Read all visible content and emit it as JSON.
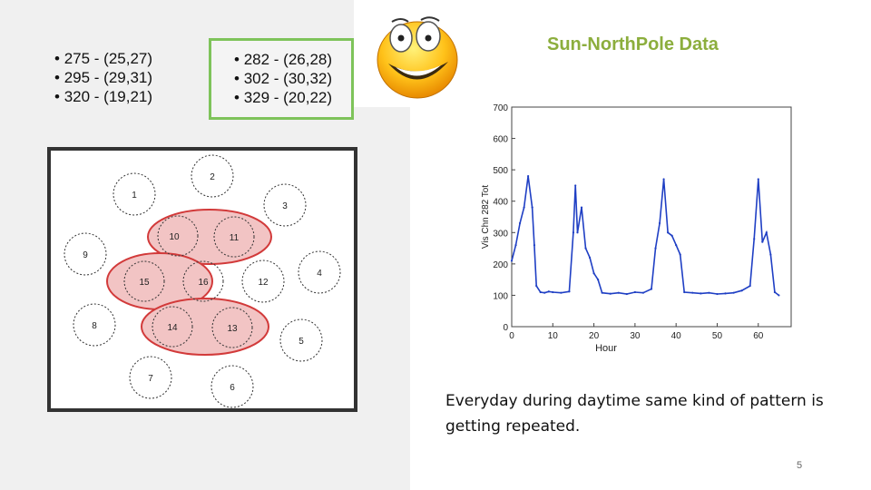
{
  "bullets_left": [
    "275 - (25,27)",
    "295 - (29,31)",
    "320 - (19,21)"
  ],
  "bullets_right": [
    "282 - (26,28)",
    "302 - (30,32)",
    "329 - (20,22)"
  ],
  "title": "Sun-NorthPole Data",
  "caption": "Everyday during daytime same kind of pattern is getting repeated.",
  "page_number": "5",
  "diagram_nodes": [
    "1",
    "2",
    "3",
    "4",
    "5",
    "6",
    "7",
    "8",
    "9",
    "10",
    "11",
    "12",
    "13",
    "14",
    "15",
    "16"
  ],
  "highlight_color": "#d23a3a",
  "chart_data": {
    "type": "line",
    "title": "",
    "xlabel": "Hour",
    "ylabel": "Vis Chn 282 Tot",
    "xlim": [
      0,
      68
    ],
    "ylim": [
      0,
      700
    ],
    "xticks": [
      "0",
      "10",
      "20",
      "30",
      "40",
      "50",
      "60"
    ],
    "yticks": [
      "0",
      "100",
      "200",
      "300",
      "400",
      "500",
      "600",
      "700"
    ],
    "series": [
      {
        "color": "#1f3fc4",
        "x": [
          0,
          1,
          2,
          3,
          4,
          5,
          5.5,
          6,
          7,
          8,
          9,
          10,
          12,
          14,
          15,
          15.5,
          16,
          17,
          18,
          19,
          20,
          21,
          22,
          24,
          26,
          28,
          30,
          32,
          34,
          35,
          36,
          37,
          38,
          39,
          40,
          41,
          42,
          44,
          46,
          48,
          50,
          52,
          54,
          56,
          58,
          59,
          60,
          61,
          62,
          63,
          64,
          65
        ],
        "y": [
          210,
          260,
          330,
          380,
          480,
          380,
          260,
          130,
          110,
          108,
          112,
          110,
          108,
          112,
          300,
          450,
          300,
          380,
          250,
          220,
          170,
          150,
          108,
          105,
          108,
          104,
          110,
          108,
          120,
          250,
          330,
          470,
          300,
          290,
          260,
          230,
          110,
          108,
          106,
          108,
          104,
          106,
          108,
          115,
          130,
          280,
          470,
          270,
          300,
          230,
          110,
          100
        ]
      }
    ]
  }
}
